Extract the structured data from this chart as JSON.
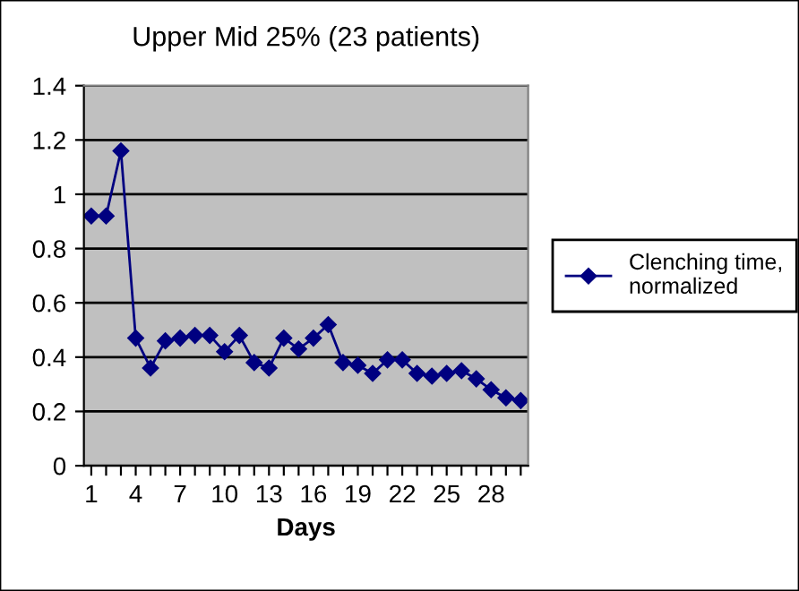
{
  "chart_data": {
    "type": "line",
    "title": "Upper Mid 25% (23 patients)",
    "xlabel": "Days",
    "categories": [
      "1",
      null,
      null,
      "4",
      null,
      null,
      "7",
      null,
      null,
      "10",
      null,
      null,
      "13",
      null,
      null,
      "16",
      null,
      null,
      "19",
      null,
      null,
      "22",
      null,
      null,
      "25",
      null,
      null,
      "28",
      null,
      null
    ],
    "series": [
      {
        "name": "Clenching time, normalized",
        "color": "#000080",
        "values": [
          0.92,
          0.92,
          1.16,
          0.47,
          0.36,
          0.46,
          0.47,
          0.48,
          0.48,
          0.42,
          0.48,
          0.38,
          0.36,
          0.47,
          0.43,
          0.47,
          0.52,
          0.38,
          0.37,
          0.34,
          0.39,
          0.39,
          0.34,
          0.33,
          0.34,
          0.35,
          0.32,
          0.28,
          0.25,
          0.24
        ]
      }
    ],
    "ylim": [
      0,
      1.4
    ],
    "yticks": [
      0,
      0.2,
      0.4,
      0.6,
      0.8,
      1,
      1.2,
      1.4
    ],
    "grid": "y",
    "legend": "right",
    "marker": "diamond",
    "line_style": "solid"
  }
}
